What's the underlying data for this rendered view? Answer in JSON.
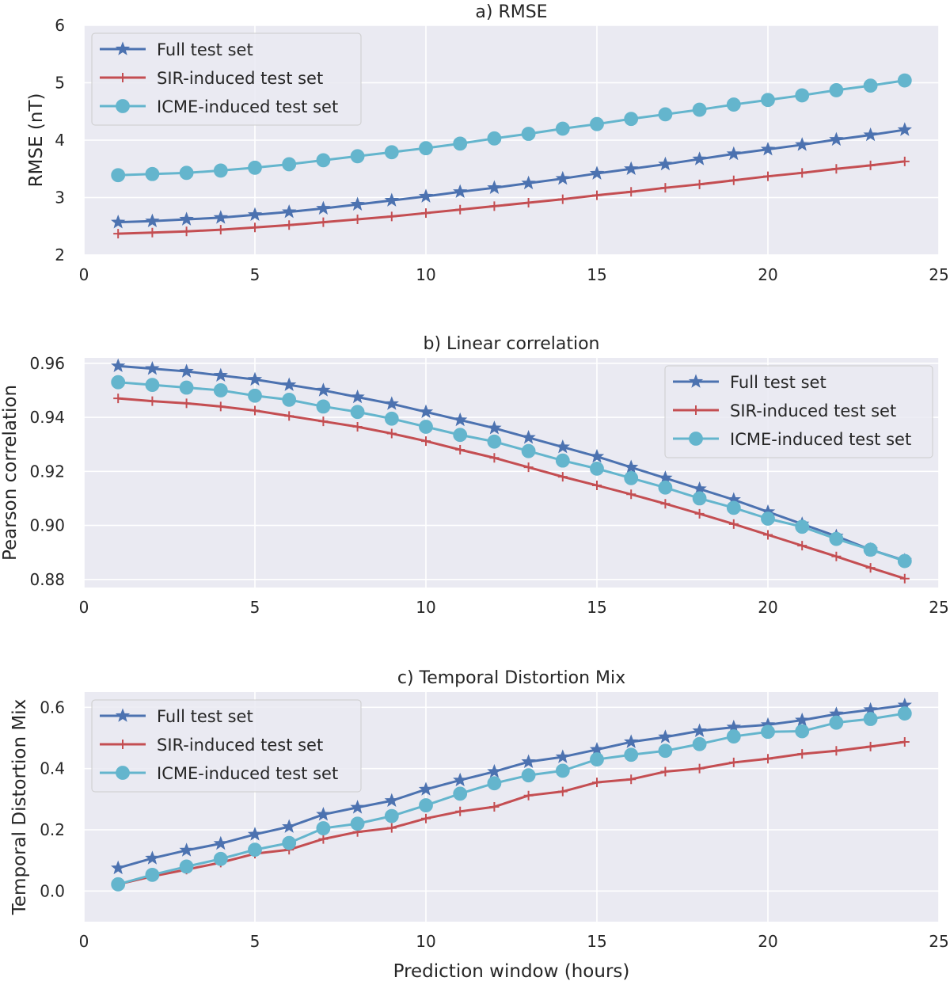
{
  "chart_data": [
    {
      "type": "line",
      "title": "a) RMSE",
      "xlabel": "",
      "ylabel": "RMSE (nT)",
      "xlim": [
        0,
        25
      ],
      "ylim": [
        2,
        6
      ],
      "xticks": [
        "0",
        "5",
        "10",
        "15",
        "20",
        "25"
      ],
      "yticks": [
        "2",
        "3",
        "4",
        "5",
        "6"
      ],
      "legend_position": "upper-left",
      "x": [
        1,
        2,
        3,
        4,
        5,
        6,
        7,
        8,
        9,
        10,
        11,
        12,
        13,
        14,
        15,
        16,
        17,
        18,
        19,
        20,
        21,
        22,
        23,
        24
      ],
      "series": [
        {
          "name": "Full test set",
          "color": "#4C72B0",
          "marker": "star",
          "values": [
            2.57,
            2.59,
            2.62,
            2.65,
            2.7,
            2.75,
            2.81,
            2.88,
            2.95,
            3.02,
            3.1,
            3.17,
            3.25,
            3.33,
            3.42,
            3.5,
            3.58,
            3.67,
            3.76,
            3.84,
            3.92,
            4.01,
            4.09,
            4.18
          ]
        },
        {
          "name": "SIR-induced test set",
          "color": "#C44E52",
          "marker": "plus",
          "values": [
            2.37,
            2.39,
            2.41,
            2.44,
            2.48,
            2.52,
            2.57,
            2.62,
            2.67,
            2.73,
            2.79,
            2.85,
            2.91,
            2.97,
            3.04,
            3.1,
            3.17,
            3.23,
            3.3,
            3.37,
            3.43,
            3.5,
            3.56,
            3.63
          ]
        },
        {
          "name": "ICME-induced test set",
          "color": "#64B5CD",
          "marker": "circle",
          "values": [
            3.39,
            3.41,
            3.43,
            3.47,
            3.52,
            3.58,
            3.65,
            3.72,
            3.79,
            3.86,
            3.94,
            4.03,
            4.11,
            4.2,
            4.28,
            4.37,
            4.45,
            4.53,
            4.62,
            4.7,
            4.78,
            4.87,
            4.95,
            5.04
          ]
        }
      ]
    },
    {
      "type": "line",
      "title": "b) Linear correlation",
      "xlabel": "",
      "ylabel": "Pearson correlation",
      "xlim": [
        0,
        25
      ],
      "ylim": [
        0.877,
        0.962
      ],
      "xticks": [
        "0",
        "5",
        "10",
        "15",
        "20",
        "25"
      ],
      "yticks": [
        "0.88",
        "0.90",
        "0.92",
        "0.94",
        "0.96"
      ],
      "legend_position": "upper-right",
      "x": [
        1,
        2,
        3,
        4,
        5,
        6,
        7,
        8,
        9,
        10,
        11,
        12,
        13,
        14,
        15,
        16,
        17,
        18,
        19,
        20,
        21,
        22,
        23,
        24
      ],
      "series": [
        {
          "name": "Full test set",
          "color": "#4C72B0",
          "marker": "star",
          "values": [
            0.959,
            0.958,
            0.957,
            0.9555,
            0.954,
            0.952,
            0.95,
            0.9475,
            0.945,
            0.942,
            0.939,
            0.936,
            0.9325,
            0.929,
            0.9255,
            0.9215,
            0.9175,
            0.9135,
            0.9095,
            0.905,
            0.9005,
            0.896,
            0.891,
            0.887
          ]
        },
        {
          "name": "SIR-induced test set",
          "color": "#C44E52",
          "marker": "plus",
          "values": [
            0.947,
            0.946,
            0.9452,
            0.944,
            0.9425,
            0.9405,
            0.9385,
            0.9365,
            0.934,
            0.9312,
            0.928,
            0.925,
            0.9215,
            0.918,
            0.9148,
            0.9115,
            0.908,
            0.9043,
            0.9005,
            0.8965,
            0.8925,
            0.8885,
            0.8843,
            0.8803
          ]
        },
        {
          "name": "ICME-induced test set",
          "color": "#64B5CD",
          "marker": "circle",
          "values": [
            0.953,
            0.952,
            0.951,
            0.95,
            0.948,
            0.9465,
            0.944,
            0.942,
            0.9395,
            0.9365,
            0.9335,
            0.931,
            0.9275,
            0.924,
            0.921,
            0.9175,
            0.914,
            0.91,
            0.9065,
            0.9025,
            0.8995,
            0.895,
            0.891,
            0.8868
          ]
        }
      ]
    },
    {
      "type": "line",
      "title": "c) Temporal Distortion Mix",
      "xlabel": "Prediction window (hours)",
      "ylabel": "Temporal Distortion Mix",
      "xlim": [
        0,
        25
      ],
      "ylim": [
        -0.1,
        0.65
      ],
      "xticks": [
        "0",
        "5",
        "10",
        "15",
        "20",
        "25"
      ],
      "yticks": [
        "0.0",
        "0.2",
        "0.4",
        "0.6"
      ],
      "legend_position": "upper-left",
      "x": [
        1,
        2,
        3,
        4,
        5,
        6,
        7,
        8,
        9,
        10,
        11,
        12,
        13,
        14,
        15,
        16,
        17,
        18,
        19,
        20,
        21,
        22,
        23,
        24
      ],
      "series": [
        {
          "name": "Full test set",
          "color": "#4C72B0",
          "marker": "star",
          "values": [
            0.075,
            0.107,
            0.133,
            0.155,
            0.185,
            0.21,
            0.25,
            0.273,
            0.295,
            0.332,
            0.362,
            0.39,
            0.422,
            0.438,
            0.462,
            0.487,
            0.503,
            0.523,
            0.535,
            0.543,
            0.558,
            0.578,
            0.592,
            0.607
          ]
        },
        {
          "name": "SIR-induced test set",
          "color": "#C44E52",
          "marker": "plus",
          "values": [
            0.022,
            0.048,
            0.07,
            0.093,
            0.122,
            0.135,
            0.17,
            0.193,
            0.206,
            0.237,
            0.26,
            0.275,
            0.312,
            0.325,
            0.355,
            0.365,
            0.39,
            0.4,
            0.42,
            0.432,
            0.448,
            0.458,
            0.472,
            0.487
          ]
        },
        {
          "name": "ICME-induced test set",
          "color": "#64B5CD",
          "marker": "circle",
          "values": [
            0.022,
            0.053,
            0.08,
            0.105,
            0.135,
            0.157,
            0.205,
            0.22,
            0.245,
            0.28,
            0.318,
            0.352,
            0.378,
            0.393,
            0.43,
            0.445,
            0.458,
            0.48,
            0.505,
            0.52,
            0.522,
            0.55,
            0.562,
            0.58
          ]
        }
      ]
    }
  ]
}
